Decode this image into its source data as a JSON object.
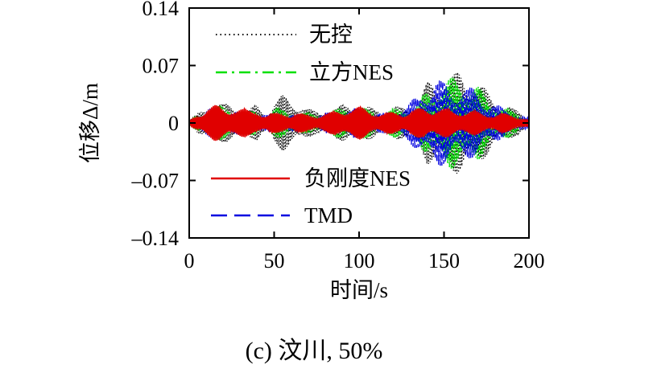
{
  "chart_data": {
    "type": "line",
    "xlabel": "时间/s",
    "ylabel": "位移Δ/m",
    "xlim": [
      0,
      200
    ],
    "ylim": [
      -0.14,
      0.14
    ],
    "xticks": [
      0,
      50,
      100,
      150,
      200
    ],
    "xtick_labels": [
      "0",
      "50",
      "100",
      "150",
      "200"
    ],
    "yticks": [
      0.14,
      0.07,
      0,
      -0.07,
      -0.14
    ],
    "ytick_labels": [
      "0.14",
      "0.07",
      "0",
      "–0.07",
      "–0.14"
    ],
    "grid": false,
    "caption": "(c) 汶川, 50%",
    "series": [
      {
        "name": "无控",
        "color": "#000000",
        "style": "dotted",
        "envelope": {
          "t": [
            0,
            5,
            10,
            15,
            20,
            25,
            30,
            35,
            40,
            45,
            50,
            55,
            60,
            65,
            70,
            75,
            80,
            85,
            90,
            95,
            100,
            105,
            110,
            115,
            120,
            125,
            130,
            135,
            140,
            145,
            150,
            155,
            160,
            165,
            170,
            175,
            180,
            185,
            190,
            195,
            200
          ],
          "amp": [
            0.002,
            0.012,
            0.02,
            0.028,
            0.024,
            0.022,
            0.02,
            0.018,
            0.022,
            0.012,
            0.03,
            0.034,
            0.03,
            0.026,
            0.018,
            0.014,
            0.016,
            0.018,
            0.022,
            0.024,
            0.022,
            0.02,
            0.018,
            0.016,
            0.02,
            0.02,
            0.022,
            0.03,
            0.05,
            0.052,
            0.056,
            0.06,
            0.064,
            0.058,
            0.052,
            0.04,
            0.03,
            0.026,
            0.018,
            0.014,
            0.008
          ]
        }
      },
      {
        "name": "立方NES",
        "color": "#00e000",
        "style": "dash-dot",
        "envelope": {
          "t": [
            0,
            5,
            10,
            15,
            20,
            25,
            30,
            35,
            40,
            45,
            50,
            55,
            60,
            65,
            70,
            75,
            80,
            85,
            90,
            95,
            100,
            105,
            110,
            115,
            120,
            125,
            130,
            135,
            140,
            145,
            150,
            155,
            160,
            165,
            170,
            175,
            180,
            185,
            190,
            195,
            200
          ],
          "amp": [
            0.002,
            0.01,
            0.016,
            0.022,
            0.02,
            0.018,
            0.016,
            0.014,
            0.016,
            0.01,
            0.018,
            0.018,
            0.016,
            0.014,
            0.012,
            0.012,
            0.014,
            0.016,
            0.02,
            0.022,
            0.02,
            0.018,
            0.016,
            0.014,
            0.018,
            0.018,
            0.02,
            0.026,
            0.04,
            0.05,
            0.054,
            0.056,
            0.058,
            0.054,
            0.046,
            0.034,
            0.026,
            0.02,
            0.016,
            0.012,
            0.006
          ]
        }
      },
      {
        "name": "负刚度NES",
        "color": "#e00000",
        "style": "solid",
        "envelope": {
          "t": [
            0,
            5,
            10,
            15,
            20,
            25,
            30,
            35,
            40,
            45,
            50,
            55,
            60,
            65,
            70,
            75,
            80,
            85,
            90,
            95,
            100,
            105,
            110,
            115,
            120,
            125,
            130,
            135,
            140,
            145,
            150,
            155,
            160,
            165,
            170,
            175,
            180,
            185,
            190,
            195,
            200
          ],
          "amp": [
            0.002,
            0.012,
            0.02,
            0.022,
            0.02,
            0.02,
            0.018,
            0.016,
            0.018,
            0.01,
            0.012,
            0.014,
            0.012,
            0.012,
            0.01,
            0.01,
            0.012,
            0.014,
            0.018,
            0.02,
            0.02,
            0.018,
            0.014,
            0.012,
            0.014,
            0.014,
            0.016,
            0.018,
            0.02,
            0.02,
            0.018,
            0.016,
            0.016,
            0.016,
            0.014,
            0.012,
            0.012,
            0.012,
            0.01,
            0.008,
            0.004
          ]
        }
      },
      {
        "name": "TMD",
        "color": "#0000e0",
        "style": "dashed",
        "envelope": {
          "t": [
            0,
            5,
            10,
            15,
            20,
            25,
            30,
            35,
            40,
            45,
            50,
            55,
            60,
            65,
            70,
            75,
            80,
            85,
            90,
            95,
            100,
            105,
            110,
            115,
            120,
            125,
            130,
            135,
            140,
            145,
            150,
            155,
            160,
            165,
            170,
            175,
            180,
            185,
            190,
            195,
            200
          ],
          "amp": [
            0.002,
            0.01,
            0.016,
            0.02,
            0.018,
            0.016,
            0.014,
            0.012,
            0.014,
            0.01,
            0.012,
            0.012,
            0.012,
            0.01,
            0.01,
            0.01,
            0.012,
            0.014,
            0.016,
            0.018,
            0.018,
            0.016,
            0.014,
            0.012,
            0.016,
            0.02,
            0.026,
            0.034,
            0.046,
            0.058,
            0.05,
            0.046,
            0.048,
            0.044,
            0.04,
            0.03,
            0.024,
            0.018,
            0.014,
            0.01,
            0.006
          ]
        }
      }
    ],
    "legend": [
      "无控",
      "立方NES",
      "负刚度NES",
      "TMD"
    ]
  }
}
